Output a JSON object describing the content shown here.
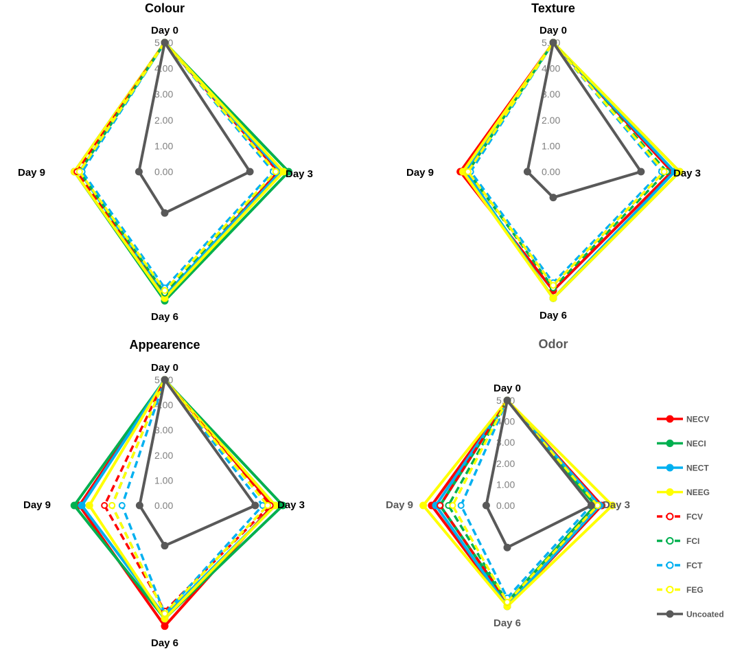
{
  "chart_data": [
    {
      "type": "radar",
      "title": "Colour",
      "axes": [
        "Day 0",
        "Day 3",
        "Day 6",
        "Day 9"
      ],
      "rlim": [
        0,
        5
      ],
      "ticks": [
        "0.00",
        "1.00",
        "2.00",
        "3.00",
        "4.00",
        "5.00"
      ],
      "series": [
        {
          "name": "NECV",
          "values": [
            5.0,
            4.4,
            4.9,
            3.5
          ]
        },
        {
          "name": "NECI",
          "values": [
            5.0,
            4.8,
            5.0,
            3.5
          ]
        },
        {
          "name": "NECT",
          "values": [
            5.0,
            4.5,
            4.8,
            3.3
          ]
        },
        {
          "name": "NEEG",
          "values": [
            5.0,
            4.6,
            4.9,
            3.5
          ]
        },
        {
          "name": "FCV",
          "values": [
            5.0,
            4.3,
            4.7,
            3.4
          ]
        },
        {
          "name": "FCI",
          "values": [
            5.0,
            4.3,
            4.7,
            3.3
          ]
        },
        {
          "name": "FCT",
          "values": [
            5.0,
            4.2,
            4.5,
            3.2
          ]
        },
        {
          "name": "FEG",
          "values": [
            5.0,
            4.3,
            4.6,
            3.3
          ]
        },
        {
          "name": "Uncoated",
          "values": [
            5.0,
            3.3,
            1.6,
            1.0
          ]
        }
      ]
    },
    {
      "type": "radar",
      "title": "Texture",
      "axes": [
        "Day 0",
        "Day 3",
        "Day 6",
        "Day 9"
      ],
      "rlim": [
        0,
        5
      ],
      "ticks": [
        "0.00",
        "1.00",
        "2.00",
        "3.00",
        "4.00",
        "5.00"
      ],
      "series": [
        {
          "name": "NECV",
          "values": [
            5.0,
            4.6,
            4.6,
            3.6
          ]
        },
        {
          "name": "NECI",
          "values": [
            5.0,
            4.9,
            4.9,
            3.4
          ]
        },
        {
          "name": "NECT",
          "values": [
            5.0,
            4.7,
            4.9,
            3.4
          ]
        },
        {
          "name": "NEEG",
          "values": [
            5.0,
            4.9,
            4.9,
            3.5
          ]
        },
        {
          "name": "FCV",
          "values": [
            5.0,
            4.3,
            4.4,
            3.3
          ]
        },
        {
          "name": "FCI",
          "values": [
            5.0,
            4.4,
            4.5,
            3.3
          ]
        },
        {
          "name": "FCT",
          "values": [
            5.0,
            4.2,
            4.3,
            3.2
          ]
        },
        {
          "name": "FEG",
          "values": [
            5.0,
            4.3,
            4.4,
            3.3
          ]
        },
        {
          "name": "Uncoated",
          "values": [
            5.0,
            3.4,
            1.0,
            1.0
          ]
        }
      ]
    },
    {
      "type": "radar",
      "title": "Appearence",
      "axes": [
        "Day 0",
        "Day 3",
        "Day 6",
        "Day 9"
      ],
      "rlim": [
        0,
        5
      ],
      "ticks": [
        "0.00",
        "1.00",
        "2.00",
        "3.00",
        "4.00",
        "5.00"
      ],
      "series": [
        {
          "name": "NECV",
          "values": [
            5.0,
            4.3,
            4.8,
            3.4
          ]
        },
        {
          "name": "NECI",
          "values": [
            5.0,
            4.7,
            4.5,
            3.6
          ]
        },
        {
          "name": "NECT",
          "values": [
            5.0,
            4.4,
            4.4,
            3.3
          ]
        },
        {
          "name": "NEEG",
          "values": [
            5.0,
            4.4,
            4.5,
            3.0
          ]
        },
        {
          "name": "FCV",
          "values": [
            5.0,
            4.2,
            4.2,
            2.4
          ]
        },
        {
          "name": "FCI",
          "values": [
            5.0,
            4.1,
            4.3,
            2.1
          ]
        },
        {
          "name": "FCT",
          "values": [
            5.0,
            3.9,
            4.3,
            1.7
          ]
        },
        {
          "name": "FEG",
          "values": [
            5.0,
            4.1,
            4.3,
            2.1
          ]
        },
        {
          "name": "Uncoated",
          "values": [
            5.0,
            3.6,
            1.6,
            1.0
          ]
        }
      ]
    },
    {
      "type": "radar",
      "title": "Odor",
      "axes": [
        "Day 0",
        "Day 3",
        "Day 6",
        "Day 9"
      ],
      "rlim": [
        0,
        5
      ],
      "ticks": [
        "0.00",
        "1.00",
        "2.00",
        "3.00",
        "4.00",
        "5.00"
      ],
      "series": [
        {
          "name": "NECV",
          "values": [
            5.0,
            4.5,
            4.8,
            3.6
          ]
        },
        {
          "name": "NECI",
          "values": [
            5.0,
            4.2,
            4.6,
            3.2
          ]
        },
        {
          "name": "NECT",
          "values": [
            5.0,
            4.4,
            4.8,
            3.4
          ]
        },
        {
          "name": "NEEG",
          "values": [
            5.0,
            5.0,
            4.8,
            4.0
          ]
        },
        {
          "name": "FCV",
          "values": [
            5.0,
            4.3,
            4.6,
            3.2
          ]
        },
        {
          "name": "FCI",
          "values": [
            5.0,
            4.2,
            4.6,
            2.8
          ]
        },
        {
          "name": "FCT",
          "values": [
            5.0,
            4.0,
            4.4,
            2.2
          ]
        },
        {
          "name": "FEG",
          "values": [
            5.0,
            4.3,
            4.6,
            2.6
          ]
        },
        {
          "name": "Uncoated",
          "values": [
            5.0,
            4.0,
            2.0,
            1.0
          ]
        }
      ]
    }
  ],
  "legend": [
    {
      "name": "NECV",
      "color": "#ff0000",
      "style": "solid"
    },
    {
      "name": "NECI",
      "color": "#00b050",
      "style": "solid"
    },
    {
      "name": "NECT",
      "color": "#00b0f0",
      "style": "solid"
    },
    {
      "name": "NEEG",
      "color": "#ffff00",
      "style": "solid"
    },
    {
      "name": "FCV",
      "color": "#ff0000",
      "style": "dashed"
    },
    {
      "name": "FCI",
      "color": "#00b050",
      "style": "dashed"
    },
    {
      "name": "FCT",
      "color": "#00b0f0",
      "style": "dashed"
    },
    {
      "name": "FEG",
      "color": "#ffff00",
      "style": "dashed"
    },
    {
      "name": "Uncoated",
      "color": "#595959",
      "style": "solid"
    }
  ],
  "colors": {
    "title_dark": "#000000",
    "title_grey": "#595959",
    "tick": "#7f7f7f",
    "extra_orange": "#ffc000"
  }
}
